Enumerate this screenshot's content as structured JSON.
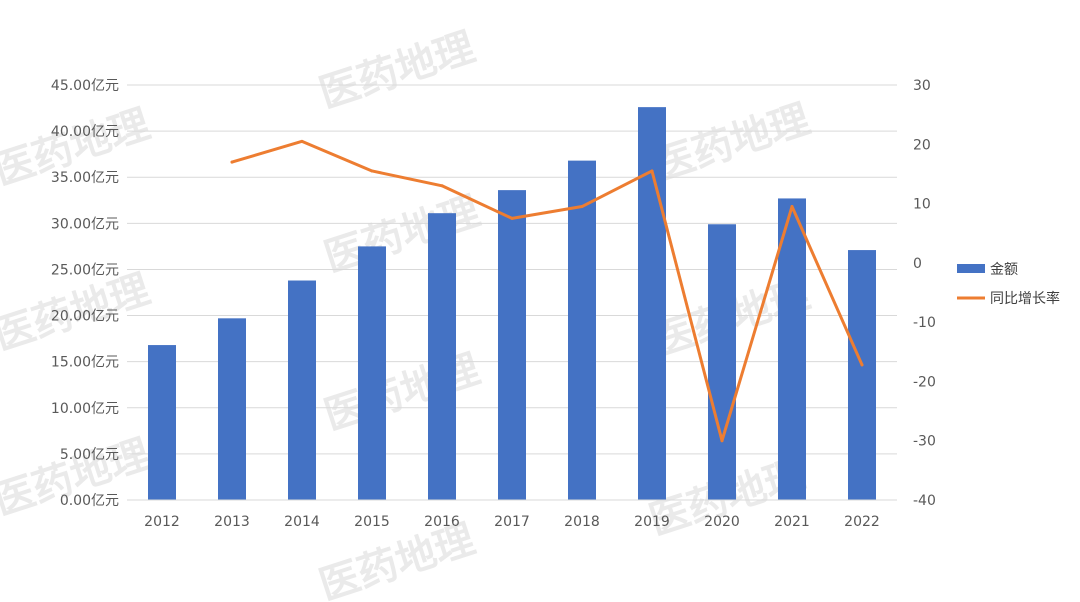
{
  "watermark": "医药地理",
  "chart_data": {
    "type": "bar",
    "categories": [
      "2012",
      "2013",
      "2014",
      "2015",
      "2016",
      "2017",
      "2018",
      "2019",
      "2020",
      "2021",
      "2022"
    ],
    "series": [
      {
        "name": "金额",
        "type": "bar",
        "axis": "left",
        "color": "#4472C4",
        "values": [
          16.8,
          19.7,
          23.8,
          27.5,
          31.1,
          33.6,
          36.8,
          42.6,
          29.9,
          32.7,
          27.1
        ]
      },
      {
        "name": "同比增长率",
        "type": "line",
        "axis": "right",
        "color": "#ED7D31",
        "values": [
          null,
          17.0,
          20.5,
          15.5,
          13.0,
          7.5,
          9.5,
          15.5,
          -30.0,
          9.5,
          -17.2
        ]
      }
    ],
    "y_left": {
      "min": 0,
      "max": 45,
      "step": 5,
      "tick_labels": [
        "0.00亿元",
        "5.00亿元",
        "10.00亿元",
        "15.00亿元",
        "20.00亿元",
        "25.00亿元",
        "30.00亿元",
        "35.00亿元",
        "40.00亿元",
        "45.00亿元"
      ]
    },
    "y_right": {
      "min": -40,
      "max": 30,
      "step": 10,
      "tick_labels": [
        "-40",
        "-30",
        "-20",
        "-10",
        "0",
        "10",
        "20",
        "30"
      ]
    },
    "grid": true,
    "legend_position": "right"
  }
}
